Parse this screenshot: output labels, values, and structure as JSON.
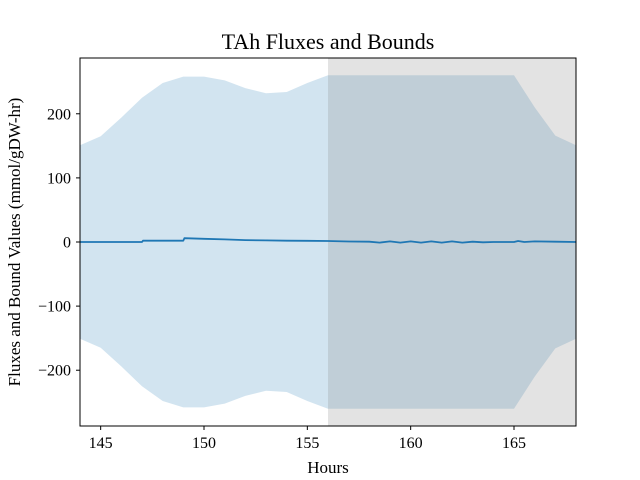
{
  "chart_data": {
    "type": "line",
    "title": "TAh Fluxes and Bounds",
    "xlabel": "Hours",
    "ylabel": "Fluxes and Bound Values (mmol/gDW-hr)",
    "xlim": [
      144,
      168
    ],
    "ylim": [
      -287,
      287
    ],
    "xticks": [
      145,
      150,
      155,
      160,
      165
    ],
    "yticks": [
      -200,
      -100,
      0,
      100,
      200
    ],
    "xtick_labels": [
      "145",
      "150",
      "155",
      "160",
      "165"
    ],
    "ytick_labels": [
      "−200",
      "−100",
      "0",
      "100",
      "200"
    ],
    "grid": false,
    "legend": "none",
    "colors": {
      "flux_line": "#1f77b4",
      "bounds_fill": "#1f77b4",
      "shaded_region": "#808080"
    },
    "shaded_region": {
      "x_start": 156,
      "x_end": 168
    },
    "series": [
      {
        "type": "band",
        "x": [
          144,
          145,
          146,
          147,
          148,
          149,
          150,
          151,
          152,
          153,
          154,
          155,
          156,
          157,
          158,
          159,
          160,
          161,
          162,
          163,
          164,
          165,
          166,
          167,
          168
        ],
        "upper": [
          151,
          165,
          194,
          225,
          248,
          258,
          258,
          252,
          240,
          232,
          234,
          248,
          260,
          260,
          260,
          260,
          260,
          260,
          260,
          260,
          260,
          260,
          210,
          166,
          151
        ],
        "lower": [
          -151,
          -165,
          -194,
          -225,
          -248,
          -258,
          -258,
          -252,
          -240,
          -232,
          -234,
          -248,
          -260,
          -260,
          -260,
          -260,
          -260,
          -260,
          -260,
          -260,
          -260,
          -260,
          -210,
          -166,
          -151
        ]
      },
      {
        "type": "line",
        "x": [
          144,
          145,
          146,
          147,
          147.05,
          148,
          149,
          149.05,
          150,
          151,
          152,
          153,
          154,
          155,
          156,
          157,
          158,
          158.5,
          159,
          159.5,
          160,
          160.5,
          161,
          161.5,
          162,
          162.5,
          163,
          163.5,
          164,
          164.5,
          165,
          165.2,
          165.5,
          166,
          167,
          168
        ],
        "values": [
          0,
          0,
          0,
          0,
          2,
          2,
          2,
          6,
          5,
          4,
          3,
          2.5,
          2,
          1.8,
          1.5,
          0.8,
          0.5,
          -1,
          1,
          -1,
          1,
          -1,
          1,
          -1,
          1,
          -1,
          0.5,
          -0.5,
          0,
          0,
          0,
          1.5,
          0,
          1,
          0.5,
          0
        ]
      }
    ]
  }
}
